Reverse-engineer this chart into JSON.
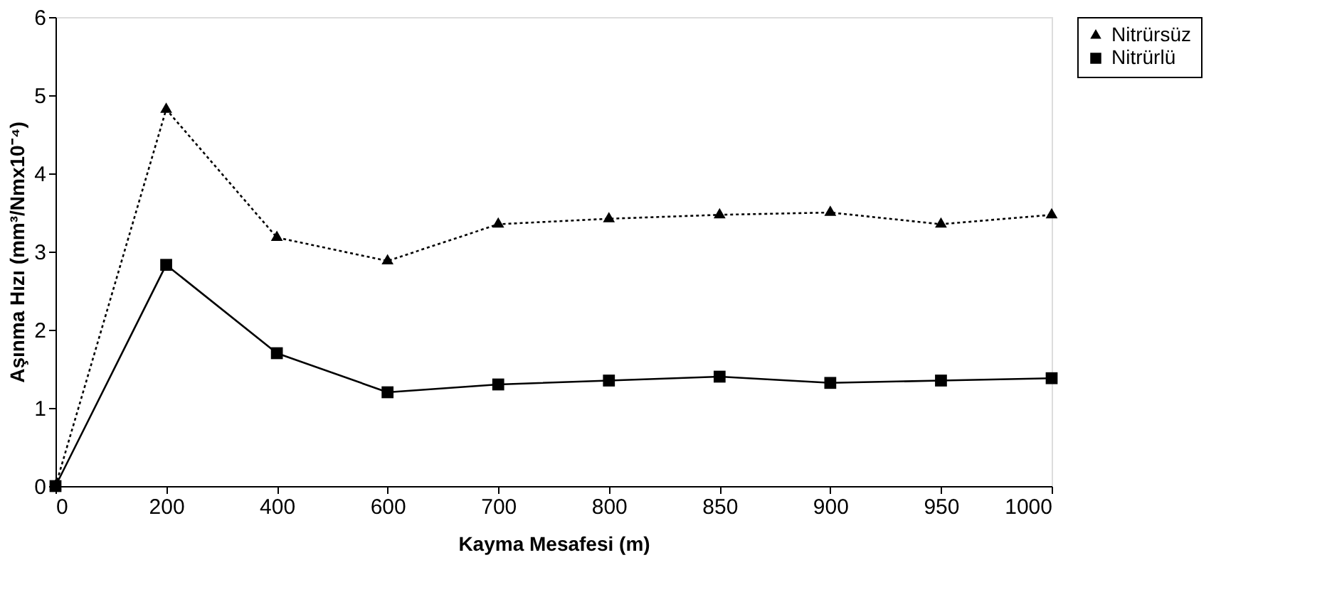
{
  "chart_data": {
    "type": "line",
    "xlabel": "Kayma Mesafesi (m)",
    "ylabel": "Aşınma Hızı (mm³/Nmx10⁻⁴)",
    "categories": [
      "0",
      "200",
      "400",
      "600",
      "700",
      "800",
      "850",
      "900",
      "950",
      "1000"
    ],
    "ylim": [
      0,
      6
    ],
    "yticks": [
      0,
      1,
      2,
      3,
      4,
      5,
      6
    ],
    "grid": false,
    "legend": "right",
    "series": [
      {
        "name": "Nitrürsüz",
        "color": "#000000",
        "marker": "triangle",
        "line_style": "dotted",
        "values": [
          0,
          4.82,
          3.18,
          2.88,
          3.35,
          3.42,
          3.47,
          3.5,
          3.35,
          3.47
        ]
      },
      {
        "name": "Nitrürlü",
        "color": "#000000",
        "marker": "square",
        "line_style": "solid",
        "values": [
          0,
          2.83,
          1.7,
          1.2,
          1.3,
          1.35,
          1.4,
          1.32,
          1.35,
          1.38
        ]
      }
    ]
  }
}
